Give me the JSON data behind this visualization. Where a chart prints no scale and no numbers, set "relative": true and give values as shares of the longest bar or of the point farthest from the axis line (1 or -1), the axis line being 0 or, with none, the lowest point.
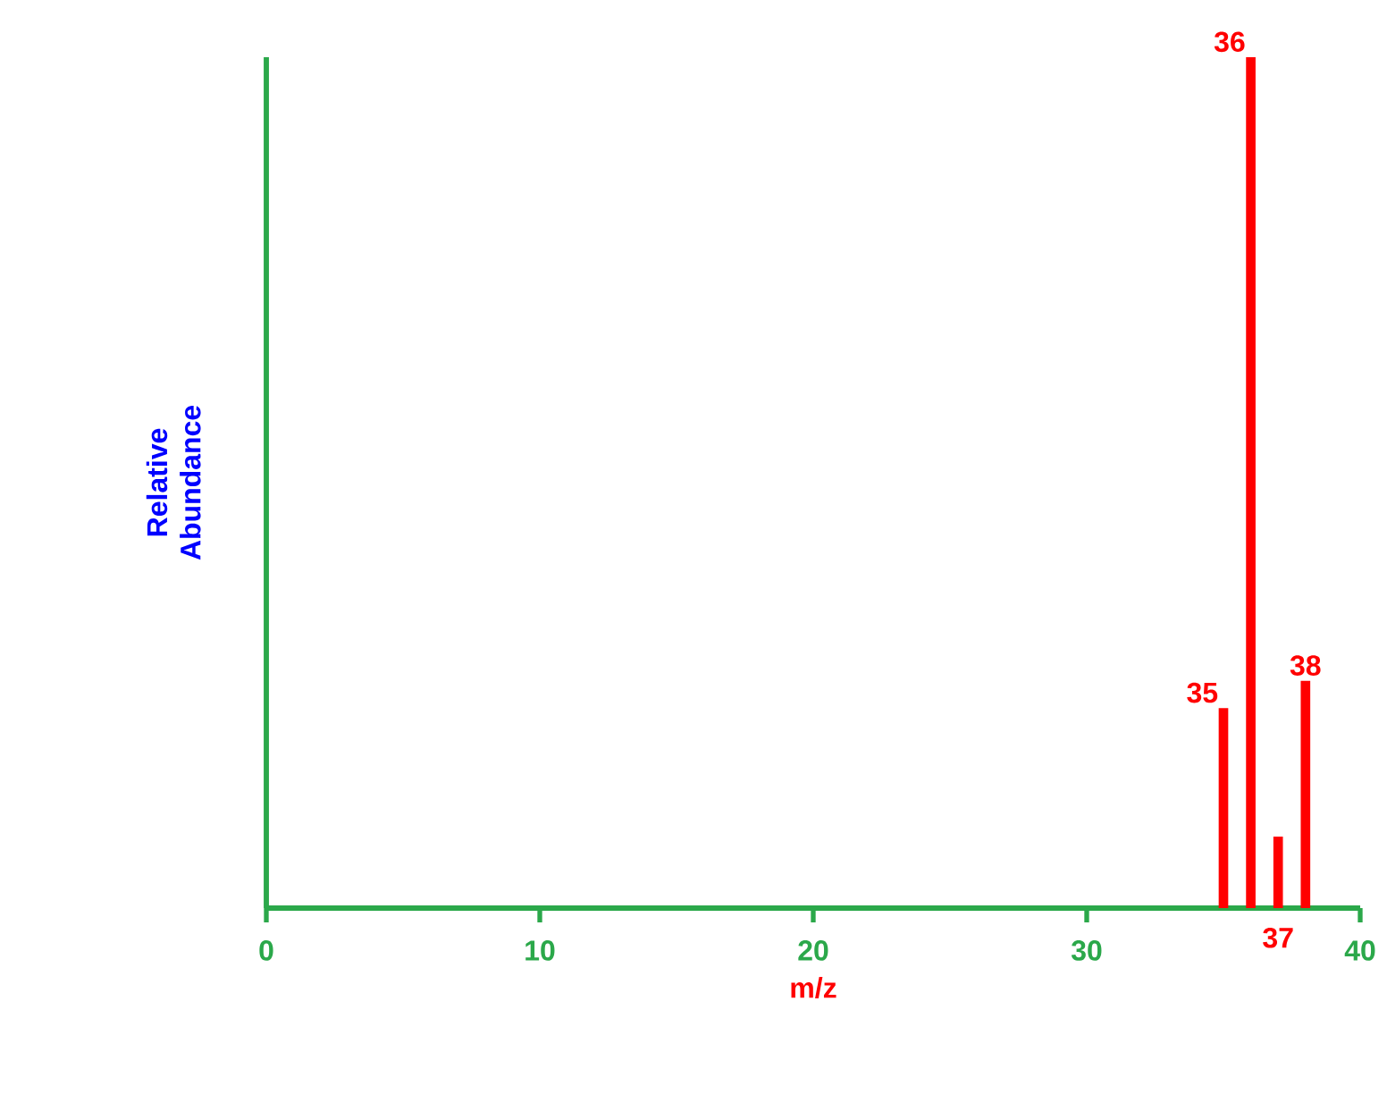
{
  "chart_data": {
    "type": "bar",
    "xlabel": "m/z",
    "ylabel": "Relative Abundance",
    "relative": true,
    "x": [
      35,
      36,
      37,
      38
    ],
    "values": [
      0.235,
      1,
      0.084,
      0.267
    ],
    "color": "#ff0000",
    "annotations": [
      {
        "text": "35",
        "x": 35,
        "y": 0.235
      },
      {
        "text": "36",
        "x": 36,
        "y": 1
      },
      {
        "text": "37",
        "x": 37,
        "y": 0
      },
      {
        "text": "38",
        "x": 38,
        "y": 0.267
      }
    ],
    "xlim": [
      0,
      40
    ],
    "xticks": [
      0,
      10,
      20,
      30,
      40
    ],
    "grid": false
  }
}
